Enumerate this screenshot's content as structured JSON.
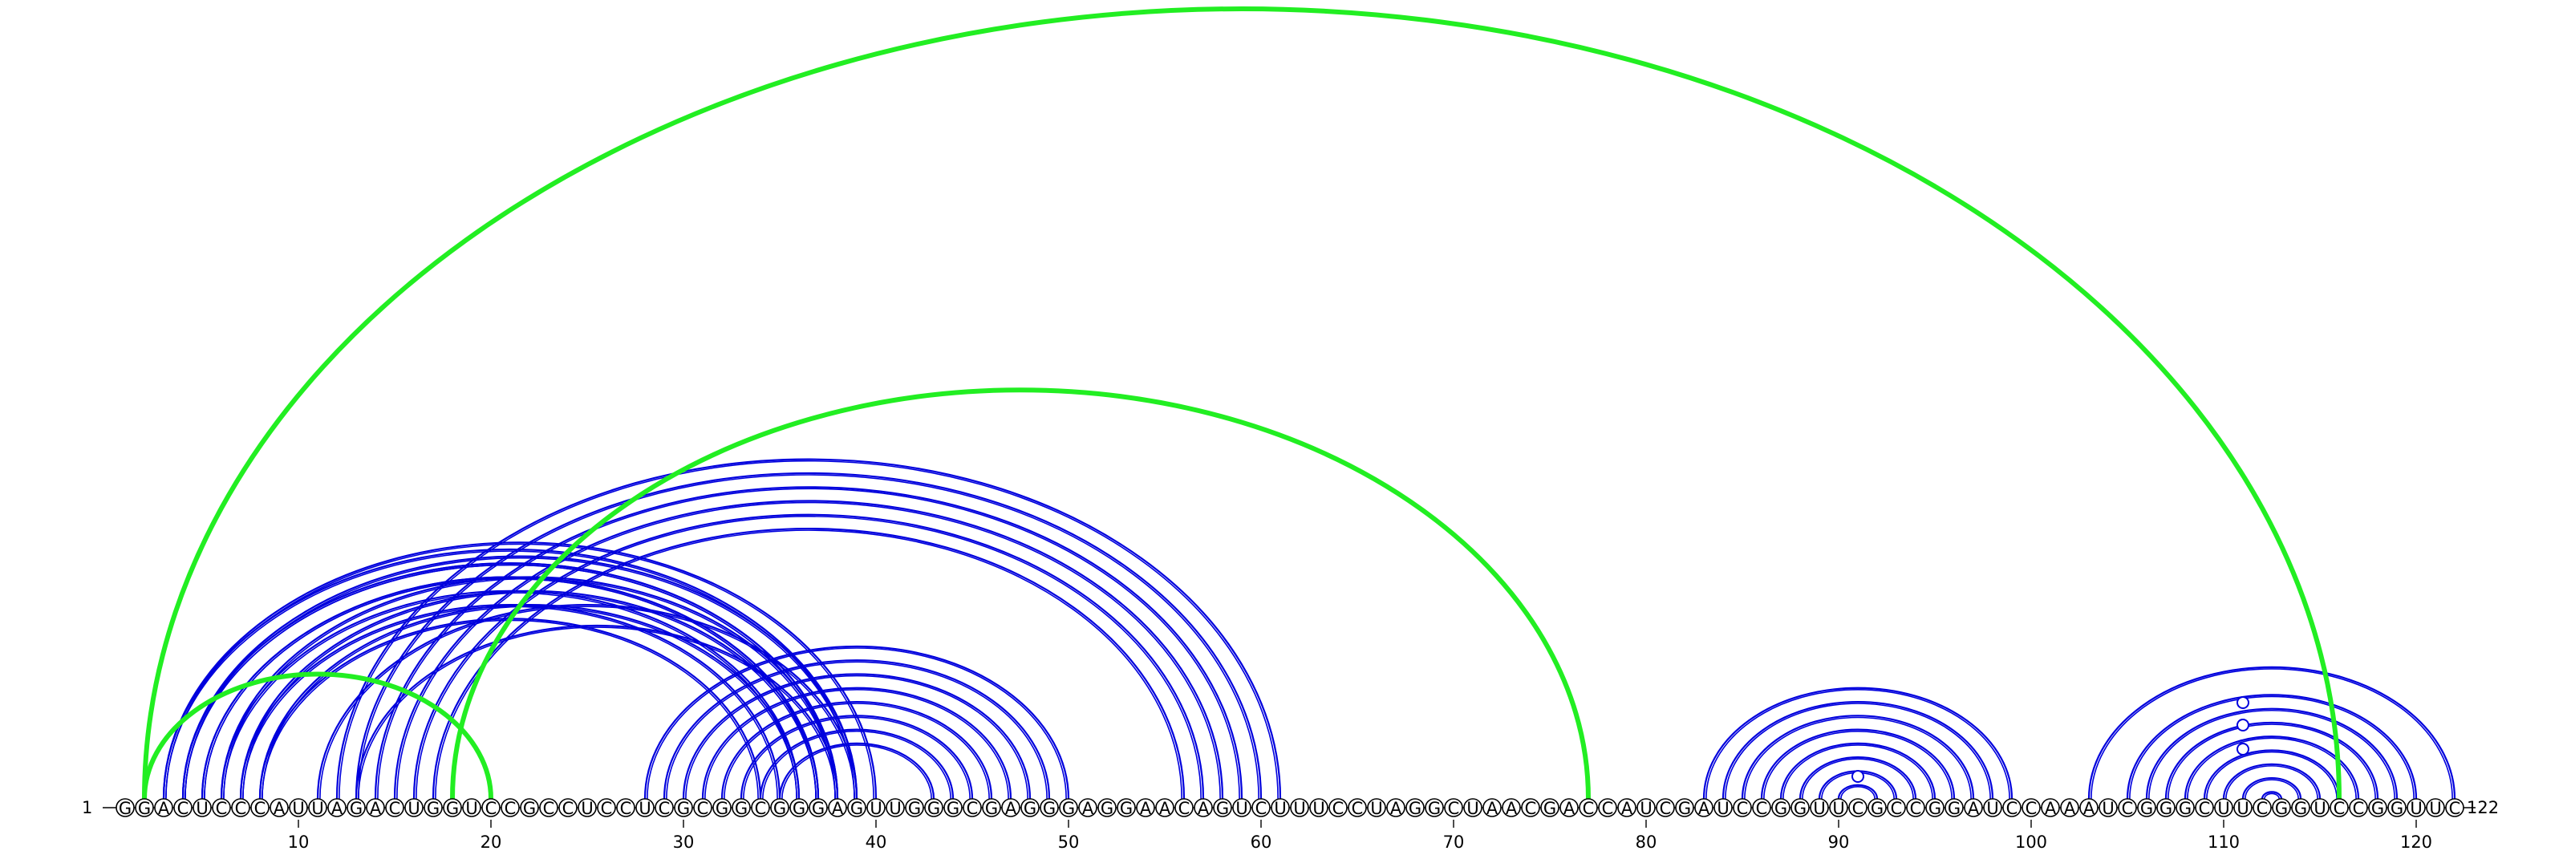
{
  "diagram": {
    "type": "rna-arc-diagram",
    "sequence": "GGACUCCCAUUAGACUGGUCCGCCUCCUCGCGGCGGGAGUUGGGCGAGGGAGGAACAGUCUUUCCUAGGCUAACGACCAUCGAUCCGGUUCGCCGGAUCCAAAUCGGGCUUCGGUCCGGUUC",
    "start_label": "1",
    "end_label": "122",
    "tick_labels": [
      "10",
      "20",
      "30",
      "40",
      "50",
      "60",
      "70",
      "80",
      "90",
      "100",
      "110",
      "120"
    ],
    "colors": {
      "primary_arcs": "#0000dd",
      "secondary_arcs": "#22ee22",
      "base_outline": "#000000"
    },
    "blue_pairs": [
      [
        4,
        38
      ],
      [
        5,
        37
      ],
      [
        6,
        36
      ],
      [
        7,
        35
      ],
      [
        8,
        34
      ],
      [
        3,
        39
      ],
      [
        4,
        38
      ],
      [
        5,
        37
      ],
      [
        3,
        40
      ],
      [
        4,
        39
      ],
      [
        6,
        38
      ],
      [
        7,
        37
      ],
      [
        8,
        36
      ],
      [
        11,
        39
      ],
      [
        13,
        38
      ],
      [
        12,
        61
      ],
      [
        13,
        60
      ],
      [
        14,
        59
      ],
      [
        15,
        58
      ],
      [
        16,
        57
      ],
      [
        17,
        56
      ],
      [
        28,
        50
      ],
      [
        29,
        49
      ],
      [
        30,
        48
      ],
      [
        31,
        47
      ],
      [
        32,
        46
      ],
      [
        33,
        45
      ],
      [
        34,
        44
      ],
      [
        35,
        43
      ],
      [
        83,
        99
      ],
      [
        84,
        98
      ],
      [
        85,
        97
      ],
      [
        86,
        96
      ],
      [
        87,
        95
      ],
      [
        88,
        94
      ],
      [
        89,
        93
      ],
      [
        90,
        92
      ],
      [
        103,
        122
      ],
      [
        105,
        120
      ],
      [
        106,
        119
      ],
      [
        107,
        118
      ],
      [
        108,
        117
      ],
      [
        109,
        116
      ],
      [
        110,
        115
      ],
      [
        111,
        114
      ],
      [
        112,
        113
      ]
    ],
    "green_pairs": [
      [
        2,
        116
      ],
      [
        2,
        20
      ],
      [
        18,
        77
      ]
    ],
    "small_loops": [
      90,
      110,
      110,
      110
    ]
  }
}
